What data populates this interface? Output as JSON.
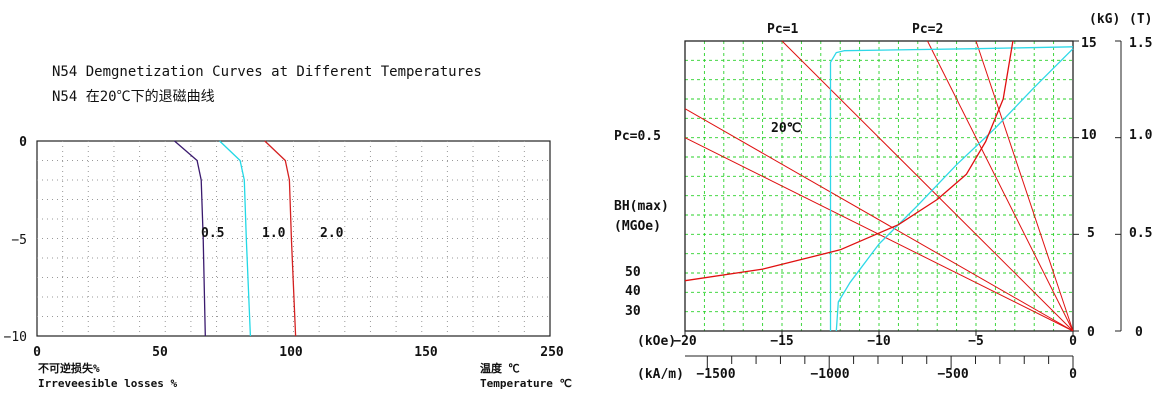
{
  "titles": {
    "line1": "N54 Demgnetization Curves at Different Temperatures",
    "line2": "N54 在20℃下的退磁曲线"
  },
  "colors": {
    "curve_0_5": "#3a1a6e",
    "curve_1_0": "#22d8e6",
    "curve_2_0": "#d42020",
    "grid_dots": "#9a9a9a",
    "bh_grid": "#2ad12a",
    "load_lines": "#e01010",
    "bh_curve": "#e01010",
    "b_curve": "#2fd8e8"
  },
  "chart_data": [
    {
      "type": "line",
      "title": "N54 Demgnetization Curves at Different Temperatures",
      "xlabel_cn": "温度 ℃",
      "xlabel": "Temperature ℃",
      "ylabel_cn": "不可逆损失%",
      "ylabel": "Irreveesible losses %",
      "xlim": [
        0,
        250
      ],
      "ylim": [
        -10,
        0
      ],
      "xticks": [
        0,
        50,
        100,
        150,
        250
      ],
      "yticks": [
        0,
        -5,
        -10
      ],
      "grid": "dotted",
      "series": [
        {
          "name": "0.5",
          "points": [
            [
              67,
              0
            ],
            [
              78,
              -1
            ],
            [
              80,
              -2
            ],
            [
              81,
              -5
            ],
            [
              82,
              -10
            ]
          ]
        },
        {
          "name": "1.0",
          "points": [
            [
              89,
              0
            ],
            [
              99,
              -1
            ],
            [
              101,
              -2
            ],
            [
              102,
              -5
            ],
            [
              104,
              -10
            ]
          ]
        },
        {
          "name": "2.0",
          "points": [
            [
              111,
              0
            ],
            [
              121,
              -1
            ],
            [
              123,
              -2
            ],
            [
              124,
              -5
            ],
            [
              126,
              -10
            ]
          ]
        }
      ]
    },
    {
      "type": "line",
      "title": "",
      "annotation_temp": "20℃",
      "x_unit_koe": "(kOe)",
      "x_unit_kam": "(kA/m)",
      "y_unit_kg": "(kG)",
      "y_unit_t": "(T)",
      "xlim": [
        -20,
        0
      ],
      "ylim": [
        0,
        15
      ],
      "xticks_koe": [
        "−20",
        "−15",
        "−10",
        "−5",
        "0"
      ],
      "xticks_kam": [
        "−1500",
        "−1000",
        "−500",
        "0"
      ],
      "yticks_kg": [
        "15",
        "10",
        "5",
        "0"
      ],
      "yticks_t": [
        "1.5",
        "1.0",
        "0.5",
        "0"
      ],
      "grid": "dashed",
      "load_lines": [
        {
          "name": "Pc=1",
          "label": "Pc=1"
        },
        {
          "name": "Pc=2",
          "label": "Pc=2"
        },
        {
          "name": "Pc=0.5",
          "label": "Pc=0.5"
        }
      ],
      "bh_labels": [
        "BH(max)",
        "(MGOe)",
        "50",
        "40",
        "30"
      ],
      "series": [
        {
          "name": "B",
          "points": [
            [
              -12.5,
              0
            ],
            [
              -12.5,
              13.9
            ],
            [
              -12.2,
              14.4
            ],
            [
              -11.8,
              14.5
            ],
            [
              -5,
              14.6
            ],
            [
              0,
              14.7
            ]
          ]
        },
        {
          "name": "J",
          "points": [
            [
              -12.2,
              0
            ],
            [
              -12.1,
              1.5
            ],
            [
              -11.5,
              2.5
            ],
            [
              -10,
              4.5
            ],
            [
              -8,
              6.5
            ],
            [
              -6,
              8.6
            ],
            [
              -4,
              10.5
            ],
            [
              -2,
              12.6
            ],
            [
              0,
              14.6
            ]
          ]
        },
        {
          "name": "BH",
          "points": [
            [
              -20,
              2.6
            ],
            [
              -16,
              3.2
            ],
            [
              -12,
              4.2
            ],
            [
              -9,
              5.5
            ],
            [
              -7,
              6.8
            ],
            [
              -5.5,
              8.1
            ],
            [
              -4.5,
              9.8
            ],
            [
              -3.6,
              12
            ],
            [
              -3.1,
              15
            ]
          ]
        }
      ]
    }
  ],
  "left_labels": {
    "ytick_0": "0",
    "ytick_m5": "−5",
    "ytick_m10": "−10",
    "xtick_0": "0",
    "xtick_50": "50",
    "xtick_100": "100",
    "xtick_150": "150",
    "xtick_250": "250",
    "curve_label_05": "0.5",
    "curve_label_10": "1.0",
    "curve_label_20": "2.0",
    "ylabel_cn": "不可逆损失%",
    "ylabel": "Irreveesible losses %",
    "xlabel_cn": "温度 ℃",
    "xlabel": "Temperature ℃"
  }
}
